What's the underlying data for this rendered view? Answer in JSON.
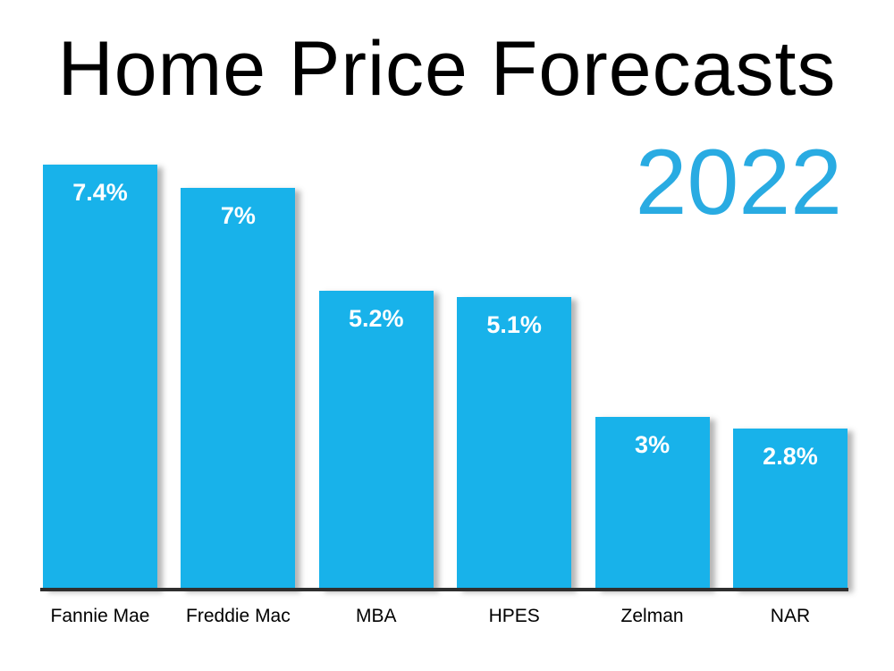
{
  "title": "Home Price Forecasts",
  "subtitle": "2022",
  "colors": {
    "bar": "#18b2ea",
    "subtitle": "#29abe2",
    "axis": "#2f2f2f",
    "title_text": "#000000",
    "value_label": "#ffffff",
    "category_label": "#000000"
  },
  "chart_data": {
    "type": "bar",
    "title": "Home Price Forecasts",
    "subtitle": "2022",
    "categories": [
      "Fannie Mae",
      "Freddie Mac",
      "MBA",
      "HPES",
      "Zelman",
      "NAR"
    ],
    "values": [
      7.4,
      7,
      5.2,
      5.1,
      3,
      2.8
    ],
    "value_labels": [
      "7.4%",
      "7%",
      "5.2%",
      "5.1%",
      "3%",
      "2.8%"
    ],
    "xlabel": "",
    "ylabel": "",
    "ylim": [
      0,
      7.4
    ],
    "grid": false,
    "legend": "none",
    "value_label_position": "inside-top",
    "bar_color": "#18b2ea"
  }
}
